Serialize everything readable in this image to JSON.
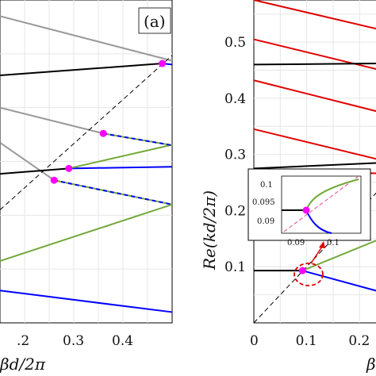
{
  "chart_data": [
    {
      "panel": "(a)",
      "type": "line",
      "xlabel": "βd/2π",
      "ylabel": "",
      "xlim": [
        0.15,
        0.5
      ],
      "ylim": [
        0,
        0.6
      ],
      "grid": true,
      "xticks": [
        ".2",
        "0.3",
        "0.4"
      ],
      "series": [
        {
          "color": "#999999",
          "points": [
            [
              0.15,
              0.57
            ],
            [
              0.5,
              0.487
            ]
          ]
        },
        {
          "color": "#000000",
          "points": [
            [
              0.15,
              0.46
            ],
            [
              0.48,
              0.482
            ]
          ]
        },
        {
          "color": "#0000ff",
          "points": [
            [
              0.48,
              0.482
            ],
            [
              0.5,
              0.48
            ]
          ]
        },
        {
          "color": "#999999",
          "points": [
            [
              0.15,
              0.4
            ],
            [
              0.36,
              0.352
            ]
          ]
        },
        {
          "color": "#999999",
          "points": [
            [
              0.15,
              0.335
            ],
            [
              0.26,
              0.265
            ]
          ]
        },
        {
          "color": "#000000",
          "points": [
            [
              0.15,
              0.277
            ],
            [
              0.29,
              0.287
            ]
          ]
        },
        {
          "color": "#0000ff",
          "points": [
            [
              0.29,
              0.287
            ],
            [
              0.5,
              0.29
            ]
          ]
        },
        {
          "color": "#73a93a",
          "points": [
            [
              0.29,
              0.287
            ],
            [
              0.5,
              0.331
            ]
          ]
        },
        {
          "color": "#73a93a",
          "points": [
            [
              0.15,
              0.115
            ],
            [
              0.5,
              0.22
            ]
          ]
        },
        {
          "color": "#0000ff",
          "points": [
            [
              0.15,
              0.06
            ],
            [
              0.5,
              0.02
            ]
          ]
        },
        {
          "color": "#000000",
          "dashed": true,
          "points": [
            [
              0.15,
              0.21
            ],
            [
              0.5,
              0.497
            ]
          ]
        },
        {
          "color": "#0000ff",
          "dashedOverlay": true,
          "points": [
            [
              0.36,
              0.352
            ],
            [
              0.5,
              0.33
            ]
          ]
        },
        {
          "color": "#0000ff",
          "dashedOverlay": true,
          "points": [
            [
              0.26,
              0.265
            ],
            [
              0.5,
              0.22
            ]
          ]
        }
      ],
      "markers": [
        [
          0.48,
          0.482
        ],
        [
          0.36,
          0.352
        ],
        [
          0.29,
          0.287
        ],
        [
          0.26,
          0.265
        ]
      ]
    },
    {
      "panel": "(b)",
      "type": "line",
      "xlabel": "β",
      "ylabel": "Re(kd/2π)",
      "xlim": [
        0,
        0.24
      ],
      "ylim": [
        0,
        0.575
      ],
      "grid": true,
      "yticks": [
        "0.1",
        "0.2",
        "0.3",
        "0.4",
        "0.5"
      ],
      "xticks": [
        "0",
        "0.1",
        "0.2"
      ],
      "series": [
        {
          "color": "#e00000",
          "points": [
            [
              0,
              0.575
            ],
            [
              0.24,
              0.522
            ]
          ]
        },
        {
          "color": "#e00000",
          "points": [
            [
              0,
              0.505
            ],
            [
              0.24,
              0.45
            ]
          ]
        },
        {
          "color": "#e00000",
          "points": [
            [
              0,
              0.432
            ],
            [
              0.24,
              0.375
            ]
          ]
        },
        {
          "color": "#e00000",
          "points": [
            [
              0,
              0.345
            ],
            [
              0.24,
              0.29
            ]
          ]
        },
        {
          "color": "#e00000",
          "points": [
            [
              0,
              0.272
            ],
            [
              0.24,
              0.266
            ]
          ]
        },
        {
          "color": "#000000",
          "points": [
            [
              0,
              0.46
            ],
            [
              0.24,
              0.462
            ]
          ]
        },
        {
          "color": "#000000",
          "points": [
            [
              0,
              0.275
            ],
            [
              0.24,
              0.285
            ]
          ]
        },
        {
          "color": "#000000",
          "points": [
            [
              0,
              0.093
            ],
            [
              0.092,
              0.093
            ]
          ]
        },
        {
          "color": "#73a93a",
          "points": [
            [
              0.092,
              0.093
            ],
            [
              0.24,
              0.15
            ]
          ]
        },
        {
          "color": "#0000ff",
          "points": [
            [
              0.092,
              0.093
            ],
            [
              0.24,
              0.055
            ]
          ]
        },
        {
          "color": "#000000",
          "dashed": true,
          "points": [
            [
              0,
              0
            ],
            [
              0.24,
              0.24
            ]
          ]
        }
      ],
      "markers": [
        [
          0.092,
          0.093
        ]
      ],
      "inset": {
        "xticks": [
          "0.09",
          "0.1"
        ],
        "yticks": [
          "0.1",
          "0.095",
          "0.09"
        ]
      }
    }
  ]
}
